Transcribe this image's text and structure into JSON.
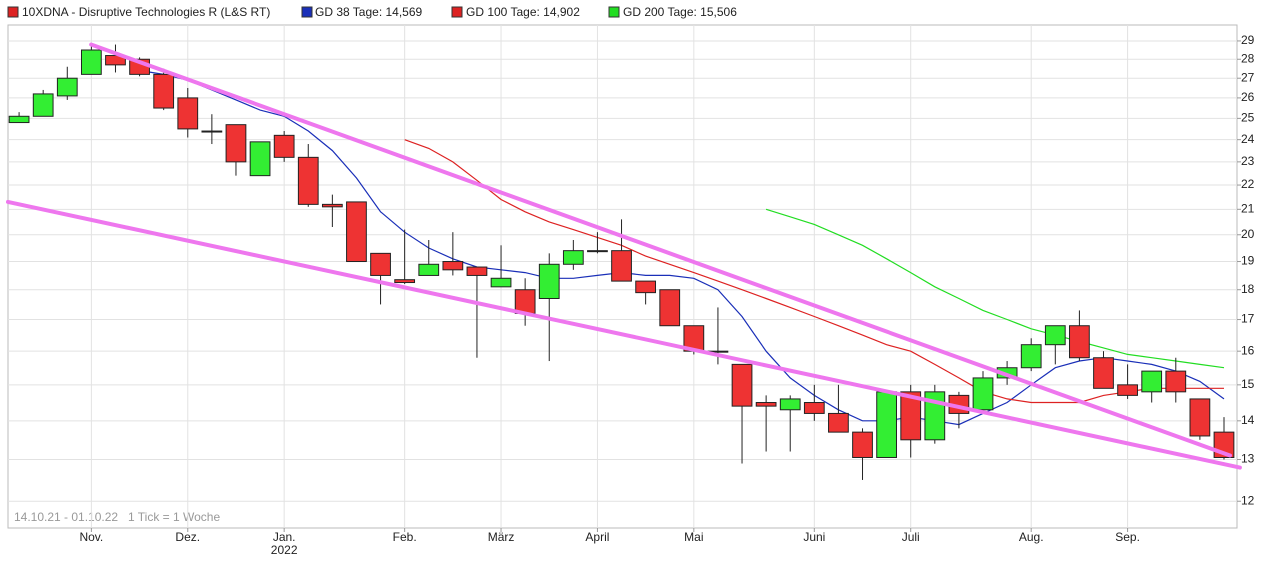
{
  "chart_data": {
    "type": "candlestick",
    "log_scale": true,
    "grid": true,
    "xlim": [
      -0.46,
      50.54
    ],
    "xticks": [
      {
        "value": 3,
        "label": "Nov."
      },
      {
        "value": 7,
        "label": "Dez."
      },
      {
        "value": 11,
        "label": "Jan.",
        "sublabel": "2022"
      },
      {
        "value": 16,
        "label": "Feb."
      },
      {
        "value": 20,
        "label": "März"
      },
      {
        "value": 24,
        "label": "April"
      },
      {
        "value": 28,
        "label": "Mai"
      },
      {
        "value": 33,
        "label": "Juni"
      },
      {
        "value": 37,
        "label": "Juli"
      },
      {
        "value": 42,
        "label": "Aug."
      },
      {
        "value": 46,
        "label": "Sep."
      }
    ],
    "ylim": [
      11.4,
      29.9
    ],
    "yticks": [
      12,
      13,
      14,
      15,
      16,
      17,
      18,
      19,
      20,
      21,
      22,
      23,
      24,
      25,
      26,
      27,
      28,
      29
    ],
    "series": [
      {
        "name": "10XDNA - Disruptive Technologies R (L&S RT)",
        "color": "#dd2222",
        "up_color": "#33ee33",
        "down_color": "#ee3333",
        "open": [
          24.8,
          25.1,
          26.1,
          27.2,
          28.2,
          28.0,
          27.2,
          26.0,
          24.4,
          24.7,
          22.4,
          24.2,
          23.2,
          21.2,
          21.3,
          19.3,
          18.35,
          18.5,
          19.0,
          18.8,
          18.1,
          18.0,
          17.7,
          18.9,
          19.4,
          19.4,
          18.3,
          18.0,
          16.8,
          16.0,
          15.6,
          14.5,
          14.3,
          14.5,
          14.2,
          13.7,
          13.05,
          14.8,
          13.5,
          14.7,
          14.3,
          15.2,
          15.5,
          16.2,
          16.8,
          15.8,
          15.0,
          14.8,
          15.4,
          14.6,
          13.7
        ],
        "high": [
          25.3,
          26.4,
          27.6,
          28.8,
          28.8,
          28.1,
          27.5,
          26.5,
          25.2,
          24.7,
          23.9,
          24.4,
          23.8,
          21.6,
          21.3,
          19.3,
          20.2,
          19.8,
          20.1,
          18.8,
          19.6,
          18.4,
          19.3,
          19.8,
          20.1,
          20.6,
          18.3,
          18.0,
          16.8,
          17.4,
          15.6,
          14.7,
          14.7,
          15.0,
          15.0,
          13.8,
          14.8,
          15.0,
          15.0,
          14.8,
          15.4,
          15.7,
          16.4,
          16.8,
          17.3,
          16.0,
          15.6,
          15.4,
          15.8,
          14.6,
          14.1
        ],
        "low": [
          24.8,
          25.1,
          25.9,
          27.2,
          27.3,
          27.1,
          25.4,
          24.1,
          23.8,
          22.4,
          22.4,
          23.0,
          21.1,
          20.3,
          19.0,
          17.5,
          18.2,
          18.5,
          18.5,
          15.8,
          18.1,
          16.8,
          15.7,
          18.7,
          19.3,
          18.3,
          17.5,
          16.8,
          15.9,
          15.6,
          12.9,
          13.2,
          13.2,
          14.0,
          13.7,
          12.5,
          13.05,
          13.05,
          13.4,
          13.8,
          14.2,
          15.0,
          15.4,
          15.6,
          15.7,
          14.9,
          14.6,
          14.5,
          14.5,
          13.5,
          13.0
        ],
        "close": [
          25.1,
          26.2,
          27.0,
          28.5,
          27.7,
          27.2,
          25.5,
          24.5,
          24.4,
          23.0,
          23.9,
          23.2,
          21.2,
          21.1,
          19.0,
          18.5,
          18.25,
          18.9,
          18.7,
          18.5,
          18.4,
          17.2,
          18.9,
          19.4,
          19.4,
          18.3,
          17.9,
          16.8,
          16.0,
          16.0,
          14.4,
          14.4,
          14.6,
          14.2,
          13.7,
          13.05,
          14.8,
          13.5,
          14.8,
          14.2,
          15.2,
          15.5,
          16.2,
          16.8,
          15.8,
          14.9,
          14.7,
          15.4,
          14.8,
          13.6,
          13.05
        ]
      },
      {
        "name": "GD 38 Tage: 14,569",
        "color": "#1a2fb8",
        "type": "line",
        "values": [
          null,
          null,
          null,
          null,
          null,
          27.4,
          27.2,
          26.9,
          26.4,
          25.9,
          25.4,
          25.1,
          24.4,
          23.5,
          22.3,
          20.9,
          20.1,
          19.5,
          19.1,
          18.8,
          18.7,
          18.6,
          18.4,
          18.4,
          18.5,
          18.6,
          18.5,
          18.5,
          18.4,
          18.0,
          17.1,
          16.0,
          15.2,
          14.7,
          14.3,
          14.0,
          14.0,
          14.1,
          14.0,
          13.9,
          14.2,
          14.5,
          15.0,
          15.5,
          15.7,
          15.8,
          15.7,
          15.6,
          15.4,
          15.1,
          14.6
        ]
      },
      {
        "name": "GD 100 Tage: 14,902",
        "color": "#dd2222",
        "type": "line",
        "values": [
          null,
          null,
          null,
          null,
          null,
          null,
          null,
          null,
          null,
          null,
          null,
          null,
          null,
          null,
          null,
          null,
          24.0,
          23.6,
          23.0,
          22.2,
          21.4,
          20.9,
          20.5,
          20.2,
          19.9,
          19.6,
          19.2,
          18.9,
          18.6,
          18.3,
          18.0,
          17.7,
          17.4,
          17.1,
          16.8,
          16.5,
          16.2,
          16.0,
          15.6,
          15.2,
          14.8,
          14.6,
          14.5,
          14.5,
          14.5,
          14.7,
          14.8,
          14.9,
          14.9,
          14.9,
          14.9
        ]
      },
      {
        "name": "GD 200 Tage: 15,506",
        "color": "#22dd22",
        "type": "line",
        "values": [
          null,
          null,
          null,
          null,
          null,
          null,
          null,
          null,
          null,
          null,
          null,
          null,
          null,
          null,
          null,
          null,
          null,
          null,
          null,
          null,
          null,
          null,
          null,
          null,
          null,
          null,
          null,
          null,
          null,
          null,
          null,
          21.0,
          20.7,
          20.4,
          20.0,
          19.6,
          19.1,
          18.6,
          18.1,
          17.7,
          17.3,
          17.0,
          16.7,
          16.5,
          16.3,
          16.1,
          15.9,
          15.8,
          15.7,
          15.6,
          15.5
        ]
      }
    ],
    "trendlines": [
      {
        "color": "#ee77ee",
        "x": [
          2.99,
          50.25
        ],
        "y": [
          28.8,
          13.1
        ]
      },
      {
        "color": "#ee77ee",
        "x": [
          -0.46,
          50.66
        ],
        "y": [
          21.3,
          12.8
        ]
      }
    ],
    "range_note": "14.10.21 - 01.10.22",
    "tick_note": "1 Tick = 1 Woche"
  }
}
